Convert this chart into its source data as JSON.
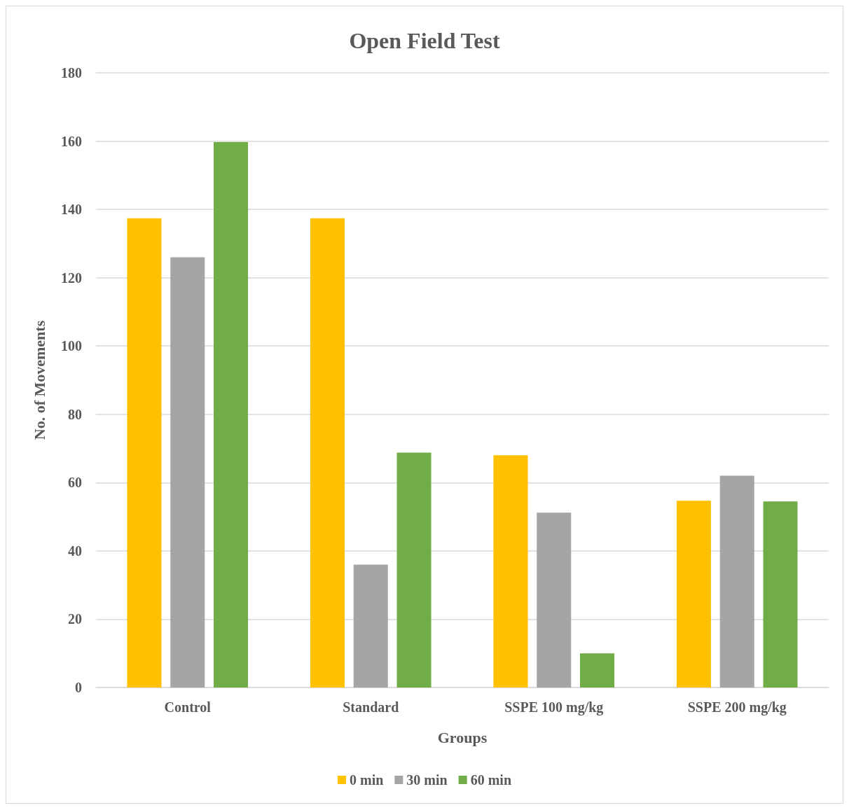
{
  "chart_data": {
    "type": "bar",
    "title": "Open Field Test",
    "xlabel": "Groups",
    "ylabel": "No. of Movements",
    "categories": [
      "Control",
      "Standard",
      "SSPE 100 mg/kg",
      "SSPE 200 mg/kg"
    ],
    "series": [
      {
        "name": "0 min",
        "color": "#ffc000",
        "values": [
          137.4,
          137.4,
          68,
          54.7
        ]
      },
      {
        "name": "30 min",
        "color": "#a5a5a5",
        "values": [
          126,
          36,
          51.2,
          62
        ]
      },
      {
        "name": "60 min",
        "color": "#70ad47",
        "values": [
          159.7,
          68.8,
          10,
          54.5
        ]
      }
    ],
    "ylim": [
      0,
      180
    ],
    "yticks": [
      0,
      20,
      40,
      60,
      80,
      100,
      120,
      140,
      160,
      180
    ],
    "grid": "y",
    "legend": "bottom"
  }
}
